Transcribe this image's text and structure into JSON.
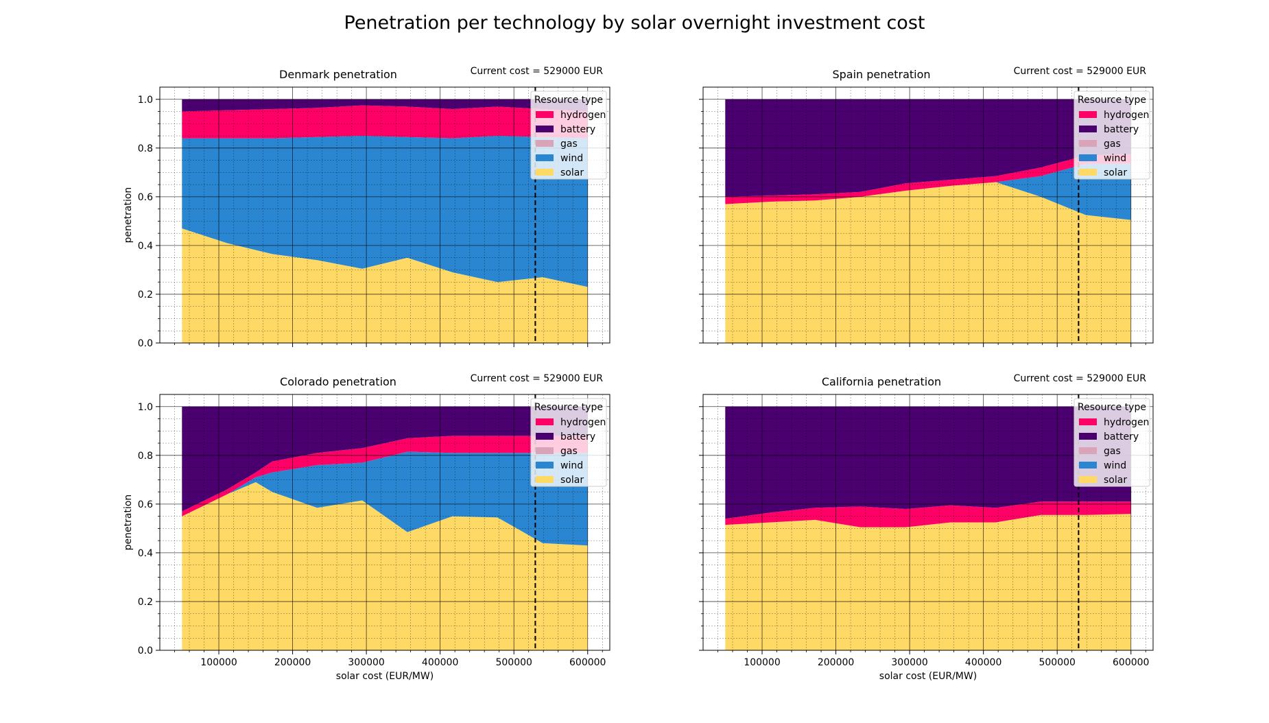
{
  "figure": {
    "title": "Penetration per technology by solar overnight investment cost"
  },
  "legend": {
    "title": "Resource type",
    "placement": "upper right"
  },
  "colors": {
    "hydrogen": "#ff0066",
    "battery": "#4b0070",
    "gas": "#d9a3b8",
    "wind": "#2a86d0",
    "solar": "#ffd966"
  },
  "chart_data": [
    {
      "type": "area",
      "title": "Denmark penetration",
      "annotation": "Current cost = 529000 EUR",
      "marker_x": 529000,
      "xlabel": "",
      "ylabel": "penetration",
      "xlim": [
        20000,
        630000
      ],
      "ylim": [
        0,
        1.05
      ],
      "xticks": [],
      "yticks": [
        "0.0",
        "0.2",
        "0.4",
        "0.6",
        "0.8",
        "1.0"
      ],
      "grid": true,
      "x": [
        50000,
        111111,
        172222,
        233333,
        294444,
        355556,
        416667,
        477778,
        538889,
        600000
      ],
      "series": [
        {
          "name": "solar",
          "values": [
            0.47,
            0.41,
            0.365,
            0.34,
            0.305,
            0.35,
            0.29,
            0.25,
            0.27,
            0.23
          ]
        },
        {
          "name": "wind",
          "values": [
            0.37,
            0.43,
            0.475,
            0.505,
            0.545,
            0.495,
            0.55,
            0.6,
            0.575,
            0.61
          ]
        },
        {
          "name": "gas",
          "values": [
            0,
            0,
            0,
            0,
            0,
            0,
            0,
            0,
            0,
            0
          ]
        },
        {
          "name": "hydrogen",
          "values": [
            0.11,
            0.115,
            0.12,
            0.12,
            0.125,
            0.125,
            0.12,
            0.12,
            0.115,
            0.11
          ]
        },
        {
          "name": "battery",
          "values": [
            0.05,
            0.045,
            0.04,
            0.035,
            0.025,
            0.03,
            0.04,
            0.03,
            0.04,
            0.05
          ]
        }
      ]
    },
    {
      "type": "area",
      "title": "Spain penetration",
      "annotation": "Current cost = 529000 EUR",
      "marker_x": 529000,
      "xlabel": "",
      "ylabel": "",
      "xlim": [
        20000,
        630000
      ],
      "ylim": [
        0,
        1.05
      ],
      "xticks": [],
      "yticks": [],
      "grid": true,
      "x": [
        50000,
        111111,
        172222,
        233333,
        294444,
        355556,
        416667,
        477778,
        538889,
        600000
      ],
      "series": [
        {
          "name": "solar",
          "values": [
            0.57,
            0.58,
            0.585,
            0.6,
            0.625,
            0.645,
            0.66,
            0.6,
            0.525,
            0.505
          ]
        },
        {
          "name": "wind",
          "values": [
            0,
            0,
            0,
            0,
            0,
            0,
            0,
            0.085,
            0.21,
            0.23
          ]
        },
        {
          "name": "gas",
          "values": [
            0,
            0,
            0,
            0,
            0,
            0,
            0,
            0,
            0,
            0
          ]
        },
        {
          "name": "hydrogen",
          "values": [
            0.03,
            0.025,
            0.025,
            0.02,
            0.03,
            0.025,
            0.025,
            0.035,
            0.035,
            0.04
          ]
        },
        {
          "name": "battery",
          "values": [
            0.4,
            0.395,
            0.39,
            0.38,
            0.345,
            0.33,
            0.315,
            0.28,
            0.23,
            0.225
          ]
        }
      ]
    },
    {
      "type": "area",
      "title": "Colorado penetration",
      "annotation": "Current cost = 529000 EUR",
      "marker_x": 529000,
      "xlabel": "solar cost (EUR/MW)",
      "ylabel": "penetration",
      "xlim": [
        20000,
        630000
      ],
      "ylim": [
        0,
        1.05
      ],
      "xticks": [
        "100000",
        "200000",
        "300000",
        "400000",
        "500000",
        "600000"
      ],
      "yticks": [
        "0.0",
        "0.2",
        "0.4",
        "0.6",
        "0.8",
        "1.0"
      ],
      "grid": true,
      "x": [
        50000,
        111111,
        150000,
        172222,
        233333,
        294444,
        355556,
        416667,
        477778,
        538889,
        600000
      ],
      "series": [
        {
          "name": "solar",
          "values": [
            0.55,
            0.64,
            0.69,
            0.65,
            0.585,
            0.615,
            0.485,
            0.55,
            0.545,
            0.44,
            0.43
          ]
        },
        {
          "name": "wind",
          "values": [
            0,
            0,
            0.02,
            0.08,
            0.175,
            0.155,
            0.33,
            0.26,
            0.265,
            0.37,
            0.38
          ]
        },
        {
          "name": "gas",
          "values": [
            0,
            0,
            0,
            0,
            0,
            0,
            0,
            0,
            0,
            0,
            0
          ]
        },
        {
          "name": "hydrogen",
          "values": [
            0.02,
            0.02,
            0.02,
            0.045,
            0.05,
            0.06,
            0.055,
            0.07,
            0.07,
            0.07,
            0.07
          ]
        },
        {
          "name": "battery",
          "values": [
            0.43,
            0.34,
            0.27,
            0.225,
            0.19,
            0.17,
            0.13,
            0.12,
            0.12,
            0.12,
            0.12
          ]
        }
      ]
    },
    {
      "type": "area",
      "title": "California penetration",
      "annotation": "Current cost = 529000 EUR",
      "marker_x": 529000,
      "xlabel": "solar cost (EUR/MW)",
      "ylabel": "",
      "xlim": [
        20000,
        630000
      ],
      "ylim": [
        0,
        1.05
      ],
      "xticks": [
        "100000",
        "200000",
        "300000",
        "400000",
        "500000",
        "600000"
      ],
      "yticks": [],
      "grid": true,
      "x": [
        50000,
        111111,
        172222,
        233333,
        294444,
        355556,
        416667,
        477778,
        538889,
        600000
      ],
      "series": [
        {
          "name": "solar",
          "values": [
            0.515,
            0.525,
            0.535,
            0.505,
            0.505,
            0.525,
            0.525,
            0.555,
            0.555,
            0.56
          ]
        },
        {
          "name": "wind",
          "values": [
            0,
            0,
            0,
            0,
            0,
            0,
            0,
            0,
            0,
            0
          ]
        },
        {
          "name": "gas",
          "values": [
            0,
            0,
            0,
            0,
            0,
            0,
            0,
            0,
            0,
            0
          ]
        },
        {
          "name": "hydrogen",
          "values": [
            0.025,
            0.04,
            0.05,
            0.085,
            0.075,
            0.07,
            0.06,
            0.055,
            0.055,
            0.05
          ]
        },
        {
          "name": "battery",
          "values": [
            0.46,
            0.435,
            0.415,
            0.41,
            0.42,
            0.405,
            0.415,
            0.39,
            0.39,
            0.39
          ]
        }
      ]
    }
  ]
}
